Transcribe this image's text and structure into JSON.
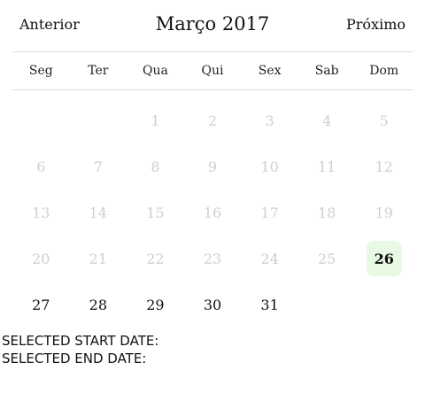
{
  "header": {
    "prev_label": "Anterior",
    "next_label": "Próximo",
    "month_title": "Março 2017"
  },
  "weekdays": [
    "Seg",
    "Ter",
    "Qua",
    "Qui",
    "Sex",
    "Sab",
    "Dom"
  ],
  "weeks": [
    [
      null,
      null,
      {
        "d": "1",
        "state": "disabled"
      },
      {
        "d": "2",
        "state": "disabled"
      },
      {
        "d": "3",
        "state": "disabled"
      },
      {
        "d": "4",
        "state": "disabled"
      },
      {
        "d": "5",
        "state": "disabled"
      }
    ],
    [
      {
        "d": "6",
        "state": "disabled"
      },
      {
        "d": "7",
        "state": "disabled"
      },
      {
        "d": "8",
        "state": "disabled"
      },
      {
        "d": "9",
        "state": "disabled"
      },
      {
        "d": "10",
        "state": "disabled"
      },
      {
        "d": "11",
        "state": "disabled"
      },
      {
        "d": "12",
        "state": "disabled"
      }
    ],
    [
      {
        "d": "13",
        "state": "disabled"
      },
      {
        "d": "14",
        "state": "disabled"
      },
      {
        "d": "15",
        "state": "disabled"
      },
      {
        "d": "16",
        "state": "disabled"
      },
      {
        "d": "17",
        "state": "disabled"
      },
      {
        "d": "18",
        "state": "disabled"
      },
      {
        "d": "19",
        "state": "disabled"
      }
    ],
    [
      {
        "d": "20",
        "state": "disabled"
      },
      {
        "d": "21",
        "state": "disabled"
      },
      {
        "d": "22",
        "state": "disabled"
      },
      {
        "d": "23",
        "state": "disabled"
      },
      {
        "d": "24",
        "state": "disabled"
      },
      {
        "d": "25",
        "state": "disabled"
      },
      {
        "d": "26",
        "state": "today"
      }
    ],
    [
      {
        "d": "27",
        "state": "active"
      },
      {
        "d": "28",
        "state": "active"
      },
      {
        "d": "29",
        "state": "active"
      },
      {
        "d": "30",
        "state": "active"
      },
      {
        "d": "31",
        "state": "active"
      },
      null,
      null
    ]
  ],
  "status": {
    "start_label": "SELECTED START DATE:",
    "end_label": "SELECTED END DATE:"
  },
  "colors": {
    "today_highlight": "#e8f9e4",
    "disabled_text": "#cfcfcf",
    "divider": "#dcdcdc"
  }
}
